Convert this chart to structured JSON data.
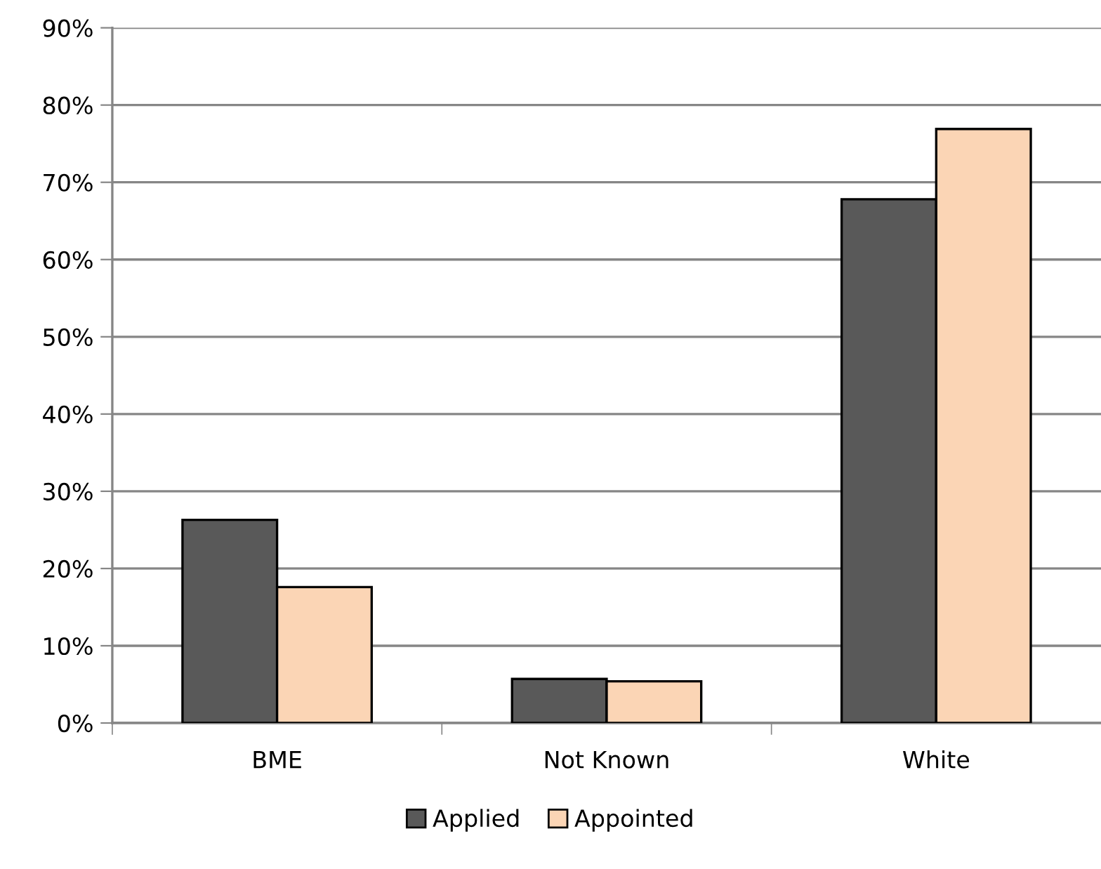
{
  "chart_data": {
    "type": "bar",
    "categories": [
      "BME",
      "Not Known",
      "White"
    ],
    "series": [
      {
        "name": "Applied",
        "color": "#595959",
        "values": [
          26.3,
          5.7,
          67.8
        ]
      },
      {
        "name": "Appointed",
        "color": "#fbd5b5",
        "values": [
          17.6,
          5.4,
          76.9
        ]
      }
    ],
    "ylim": [
      0,
      90
    ],
    "yticks": [
      {
        "value": 0,
        "label": "0%"
      },
      {
        "value": 10,
        "label": "10%"
      },
      {
        "value": 20,
        "label": "20%"
      },
      {
        "value": 30,
        "label": "30%"
      },
      {
        "value": 40,
        "label": "40%"
      },
      {
        "value": 50,
        "label": "50%"
      },
      {
        "value": 60,
        "label": "60%"
      },
      {
        "value": 70,
        "label": "70%"
      },
      {
        "value": 80,
        "label": "80%"
      },
      {
        "value": 90,
        "label": "90%"
      }
    ],
    "grid": "y",
    "legend": "bottom"
  }
}
